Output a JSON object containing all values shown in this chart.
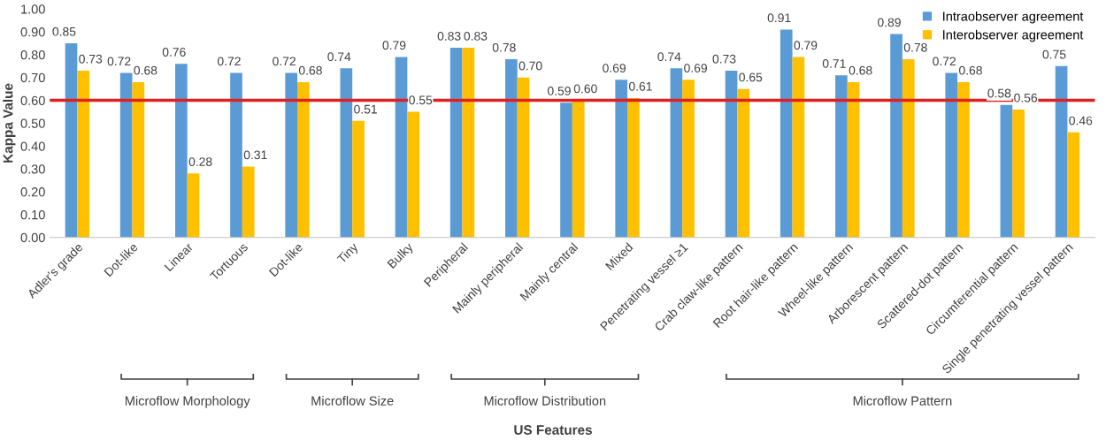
{
  "chart_data": {
    "type": "bar",
    "categories": [
      "Adler's grade",
      "Dot-like",
      "Linear",
      "Tortuous",
      "Dot-like",
      "Tiny",
      "Bulky",
      "Peripheral",
      "Mainly peripheral",
      "Mainly central",
      "Mixed",
      "Penetrating vessel ≥1",
      "Crab claw-like pattern",
      "Root hair-like pattern",
      "Wheel-like pattern",
      "Arborescent pattern",
      "Scattered-dot pattern",
      "Circumferential pattern",
      "Single penetrating vessel pattern"
    ],
    "series": [
      {
        "name": "Intraobserver agreement",
        "color": "#5b9bd5",
        "values": [
          0.85,
          0.72,
          0.76,
          0.72,
          0.72,
          0.74,
          0.79,
          0.83,
          0.78,
          0.59,
          0.69,
          0.74,
          0.73,
          0.91,
          0.71,
          0.89,
          0.72,
          0.58,
          0.75
        ],
        "value_labels": [
          "0.85",
          "0.72",
          "0.76",
          "0.72",
          "0.72",
          "0.74",
          "0.79",
          "0.83",
          "0.78",
          "0.59",
          "0.69",
          "0.74",
          "0.73",
          "0.91",
          "0.71",
          "0.89",
          "0.72",
          "0.58",
          "0.75"
        ]
      },
      {
        "name": "Interobserver agreement",
        "color": "#ffc000",
        "values": [
          0.73,
          0.68,
          0.28,
          0.31,
          0.68,
          0.51,
          0.55,
          0.83,
          0.7,
          0.6,
          0.61,
          0.69,
          0.65,
          0.79,
          0.68,
          0.78,
          0.68,
          0.56,
          0.46
        ],
        "value_labels": [
          "0.73",
          "0.68",
          "0.28",
          "0.31",
          "0.68",
          "0.51",
          "0.55",
          "0.83",
          "0.70",
          "0.60",
          "0.61",
          "0.69",
          "0.65",
          "0.79",
          "0.68",
          "0.78",
          "0.68",
          "0.56",
          "0.46"
        ]
      }
    ],
    "xlabel": "US Features",
    "ylabel": "Kappa Value",
    "ylim": [
      0,
      1.0
    ],
    "yticks": [
      {
        "value": 0,
        "label": "0.00"
      },
      {
        "value": 0.1,
        "label": "0.10"
      },
      {
        "value": 0.2,
        "label": "0.20"
      },
      {
        "value": 0.3,
        "label": "0.30"
      },
      {
        "value": 0.4,
        "label": "0.40"
      },
      {
        "value": 0.5,
        "label": "0.50"
      },
      {
        "value": 0.6,
        "label": "0.60"
      },
      {
        "value": 0.7,
        "label": "0.70"
      },
      {
        "value": 0.8,
        "label": "0.80"
      },
      {
        "value": 0.9,
        "label": "0.90"
      },
      {
        "value": 1.0,
        "label": "1.00"
      }
    ],
    "ref_lines": [
      {
        "axis": "y",
        "value": 0.6,
        "color": "#e02020"
      }
    ],
    "annotations": [
      "Microflow Morphology",
      "Microflow Size",
      "Microflow Distribution",
      "Microflow Pattern"
    ],
    "grid": false,
    "legend": "top right"
  }
}
